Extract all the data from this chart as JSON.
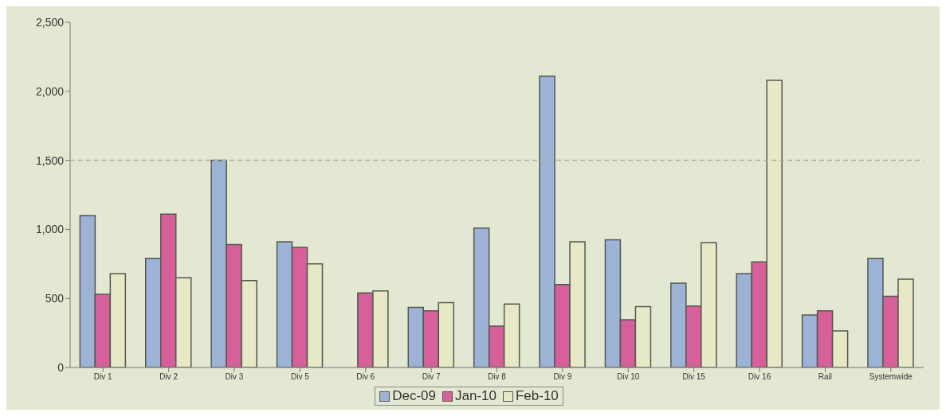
{
  "chart_data": {
    "type": "bar",
    "categories": [
      "Div 1",
      "Div 2",
      "Div 3",
      "Div 5",
      "Div 6",
      "Div 7",
      "Div 8",
      "Div 9",
      "Div 10",
      "Div 15",
      "Div 16",
      "Rail",
      "Systemwide"
    ],
    "series": [
      {
        "name": "Dec-09",
        "color": "#9db3d6",
        "values": [
          1100,
          790,
          1500,
          910,
          null,
          435,
          1010,
          2110,
          925,
          610,
          680,
          380,
          790
        ]
      },
      {
        "name": "Jan-10",
        "color": "#d6609a",
        "values": [
          530,
          1110,
          890,
          870,
          540,
          410,
          300,
          600,
          345,
          445,
          765,
          410,
          515
        ]
      },
      {
        "name": "Feb-10",
        "color": "#e7e9c6",
        "values": [
          680,
          650,
          630,
          750,
          555,
          470,
          460,
          910,
          440,
          905,
          2080,
          265,
          640
        ]
      }
    ],
    "ylim": [
      0,
      2500
    ],
    "yticks": [
      0,
      {
        "value": 500,
        "label": "500"
      },
      {
        "value": 1000,
        "label": "1,000"
      },
      {
        "value": 1500,
        "label": "1,500"
      },
      {
        "value": 2000,
        "label": "2,000"
      },
      {
        "value": 2500,
        "label": "2,500"
      }
    ],
    "ref_lines": [
      {
        "axis": "y",
        "value": 1500,
        "line_style": "dashed",
        "color": "#b0b4a8"
      }
    ],
    "grid": false,
    "legend": "bottom"
  }
}
